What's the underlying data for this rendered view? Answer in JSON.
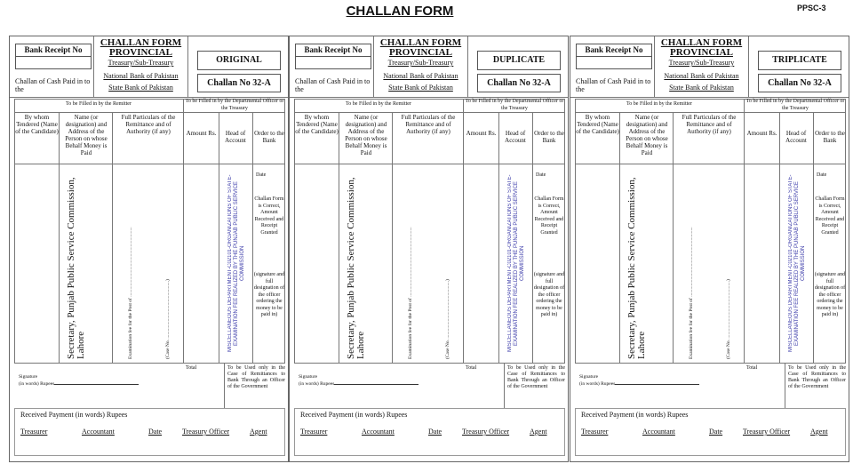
{
  "page": {
    "title": "CHALLAN FORM",
    "code": "PPSC-3"
  },
  "form": {
    "bank_receipt_label": "Bank Receipt No",
    "cash_paid": "Challan of Cash Paid in to the",
    "heading": "CHALLAN FORM PROVINCIAL",
    "treasury": "Treasury/Sub-Treasury",
    "nbp": "National Bank of Pakistan",
    "sbp": "State Bank of Pakistan",
    "challan_no": "Challan No 32-A",
    "remitter_section": "To be Filled in by the Remitter",
    "officer_section": "To be Filled in by the Departmental Officer or the Treasury",
    "columns": [
      "By whom Tendered (Name of the Candidate)",
      "Name (or designation) and Address of the Person on whose Behalf Money is Paid",
      "Full Particulars of the Remittance and of Authority (if any)",
      "Amount Rs.",
      "Head of Account",
      "Order to the Bank"
    ],
    "payee": "Secretary, Punjab Public Service Commission, Lahore",
    "exam_fee": "Examination fee for the Post of .........................................................",
    "case_no": "(Case No. ...............................................)",
    "head_of_account": "MISCELLANEOUS DEPARTMENT-C02101-ORGANIZATIONS OF STATE-EXAMINATION FEE REALIZED BY THE PUNJAB PUBLIC SERVICE COMMISSION",
    "order_date": "Date",
    "order_text": "Challan Form is Correct, Amount Received and Receipt Granted",
    "order_sign": "(signature and full designation of the officer ordering the money to be paid in)",
    "total": "Total",
    "signature": "Signature",
    "in_words": "(in words) Rupees",
    "govt_note": "To be Used only in the Case of Remittances to Bank Through an Officer of the Government",
    "received": "Received Payment (in words) Rupees",
    "treasurer": "Treasurer",
    "accountant": "Accountant",
    "date": "Date",
    "treasury_officer": "Treasury Officer",
    "agent": "Agent"
  },
  "copies": [
    {
      "label": "ORIGINAL"
    },
    {
      "label": "DUPLICATE"
    },
    {
      "label": "TRIPLICATE"
    }
  ],
  "colors": {
    "head_of_account": "#3a3aa8",
    "border": "#666666"
  }
}
